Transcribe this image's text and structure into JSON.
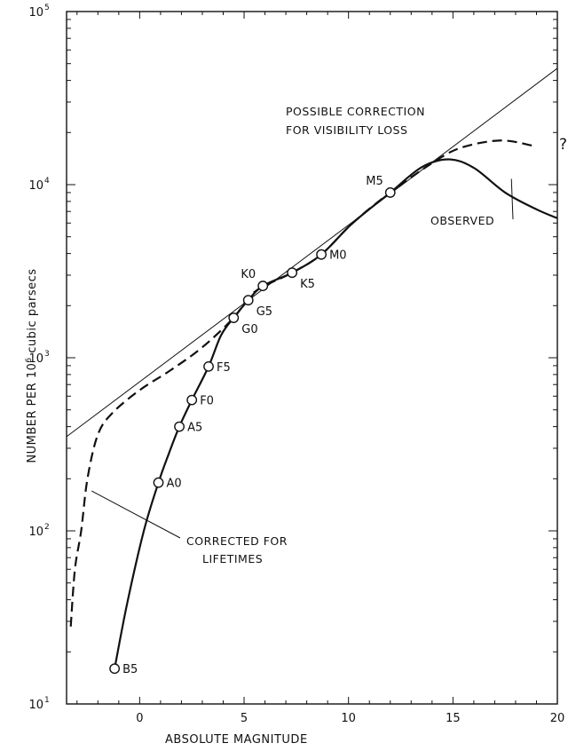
{
  "chart_data": {
    "type": "line",
    "xlabel": "ABSOLUTE MAGNITUDE",
    "ylabel": "NUMBER PER 10",
    "ylabel_superscript": "6",
    "ylabel_suffix": " cubic parsecs",
    "xlim": [
      -3.5,
      20
    ],
    "ylim": [
      10,
      100000
    ],
    "yscale": "log",
    "x_ticks": [
      {
        "value": 0,
        "label": "0"
      },
      {
        "value": 5,
        "label": "5"
      },
      {
        "value": 10,
        "label": "10"
      },
      {
        "value": 15,
        "label": "15"
      },
      {
        "value": 20,
        "label": "20"
      }
    ],
    "y_ticks": [
      {
        "value": 10,
        "base": "10",
        "exp": "1"
      },
      {
        "value": 100,
        "base": "10",
        "exp": "2"
      },
      {
        "value": 1000,
        "base": "10",
        "exp": "3"
      },
      {
        "value": 10000,
        "base": "10",
        "exp": "4"
      },
      {
        "value": 100000,
        "base": "10",
        "exp": "5"
      }
    ],
    "series": [
      {
        "name": "OBSERVED",
        "style": "solid",
        "points": [
          [
            -1.2,
            16
          ],
          [
            -0.6,
            38
          ],
          [
            0.2,
            100
          ],
          [
            0.9,
            190
          ],
          [
            1.4,
            280
          ],
          [
            1.9,
            400
          ],
          [
            2.5,
            570
          ],
          [
            3.3,
            890
          ],
          [
            3.9,
            1350
          ],
          [
            4.5,
            1700
          ],
          [
            5.2,
            2150
          ],
          [
            5.9,
            2600
          ],
          [
            7.3,
            3100
          ],
          [
            8.7,
            3950
          ],
          [
            10.2,
            6000
          ],
          [
            12.0,
            9000
          ],
          [
            13.5,
            12600
          ],
          [
            14.8,
            14000
          ],
          [
            16.0,
            12500
          ],
          [
            17.5,
            9000
          ],
          [
            19.0,
            7200
          ],
          [
            20.0,
            6400
          ]
        ]
      },
      {
        "name": "CORRECTED FOR LIFETIMES",
        "style": "dashed",
        "points": [
          [
            -3.3,
            28
          ],
          [
            -3.1,
            60
          ],
          [
            -2.8,
            100
          ],
          [
            -2.5,
            200
          ],
          [
            -2.0,
            360
          ],
          [
            -1.3,
            480
          ],
          [
            0,
            650
          ],
          [
            1.5,
            850
          ],
          [
            3.0,
            1150
          ],
          [
            4.5,
            1700
          ],
          [
            5.5,
            2400
          ],
          [
            7.3,
            3100
          ],
          [
            8.7,
            3950
          ],
          [
            10.2,
            6000
          ],
          [
            12.0,
            9000
          ],
          [
            14.2,
            13800
          ],
          [
            15.5,
            16500
          ],
          [
            17.3,
            18000
          ],
          [
            18.8,
            16800
          ]
        ]
      },
      {
        "name": "POSSIBLE CORRECTION FOR VISIBILITY LOSS",
        "style": "thin",
        "points": [
          [
            -3.5,
            350
          ],
          [
            20.0,
            47000
          ]
        ]
      }
    ],
    "points": [
      {
        "label": "B5",
        "x": -1.2,
        "y": 16,
        "pos": "right"
      },
      {
        "label": "A0",
        "x": 0.9,
        "y": 190,
        "pos": "right"
      },
      {
        "label": "A5",
        "x": 1.9,
        "y": 400,
        "pos": "right"
      },
      {
        "label": "F0",
        "x": 2.5,
        "y": 570,
        "pos": "right"
      },
      {
        "label": "F5",
        "x": 3.3,
        "y": 890,
        "pos": "right"
      },
      {
        "label": "G0",
        "x": 4.5,
        "y": 1700,
        "pos": "right-below"
      },
      {
        "label": "G5",
        "x": 5.2,
        "y": 2150,
        "pos": "right-below"
      },
      {
        "label": "K0",
        "x": 5.9,
        "y": 2600,
        "pos": "left-above"
      },
      {
        "label": "K5",
        "x": 7.3,
        "y": 3100,
        "pos": "right-below"
      },
      {
        "label": "M0",
        "x": 8.7,
        "y": 3950,
        "pos": "right"
      },
      {
        "label": "M5",
        "x": 12.0,
        "y": 9000,
        "pos": "left-above"
      }
    ],
    "annotations": {
      "visibility_line1": "POSSIBLE CORRECTION",
      "visibility_line2": "FOR VISIBILITY LOSS",
      "observed": "OBSERVED",
      "corrected_line1": "CORRECTED FOR",
      "corrected_line2": "LIFETIMES",
      "question": "?"
    }
  }
}
